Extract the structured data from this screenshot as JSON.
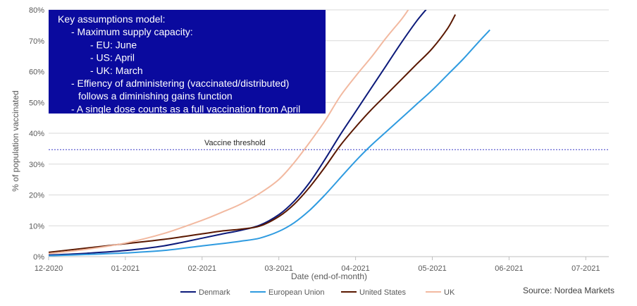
{
  "chart_data": {
    "type": "line",
    "xlabel": "Date (end-of-month)",
    "ylabel": "% of population vaccinated",
    "x_ticks": [
      "12-2020",
      "01-2021",
      "02-2021",
      "03-2021",
      "04-2021",
      "05-2021",
      "06-2021",
      "07-2021"
    ],
    "y_ticks": [
      "0%",
      "10%",
      "20%",
      "30%",
      "40%",
      "50%",
      "60%",
      "70%",
      "80%"
    ],
    "ylim": [
      0,
      80
    ],
    "xlim": [
      0,
      7.3
    ],
    "grid": "horizontal",
    "legend": "bottom",
    "threshold": {
      "label": "Vaccine threshold",
      "value": 34.7,
      "color": "#3a3ac8"
    },
    "source": "Source: Nordea Markets",
    "assumptions_box": {
      "color": "#0a0a9e",
      "lines": [
        "Key assumptions model:",
        "- Maximum supply capacity:",
        "- EU: June",
        "- US: April",
        "- UK: March",
        "- Effiency of administering (vaccinated/distributed)",
        "follows a diminishing gains function",
        "- A single dose counts as a full vaccination from April"
      ]
    },
    "series": [
      {
        "name": "Denmark",
        "color": "#0c1a7a",
        "x": [
          0,
          0.5,
          1,
          1.5,
          2,
          2.25,
          2.5,
          2.75,
          3,
          3.2,
          3.4,
          3.6,
          3.8,
          4.0,
          4.2,
          4.4,
          4.6,
          4.8,
          4.95
        ],
        "y": [
          0.5,
          1.1,
          2.0,
          3.5,
          6.0,
          7.3,
          8.5,
          10.2,
          13.6,
          18.0,
          24.0,
          31.5,
          39.5,
          47.0,
          54.5,
          62.0,
          69.5,
          76.5,
          81.0
        ]
      },
      {
        "name": "European Union",
        "color": "#2f9be0",
        "x": [
          0,
          0.5,
          1,
          1.5,
          2,
          2.25,
          2.5,
          2.75,
          3,
          3.2,
          3.4,
          3.6,
          3.8,
          4.0,
          4.2,
          4.4,
          4.6,
          4.8,
          5.0,
          5.2,
          5.4,
          5.6,
          5.75
        ],
        "y": [
          0.3,
          0.7,
          1.2,
          2.0,
          3.5,
          4.2,
          5.0,
          6.0,
          8.2,
          11.0,
          15.0,
          20.0,
          25.5,
          31.0,
          36.0,
          40.5,
          45.0,
          49.5,
          54.0,
          59.0,
          64.0,
          69.5,
          73.5
        ]
      },
      {
        "name": "United States",
        "color": "#5a1800",
        "x": [
          0,
          0.5,
          1,
          1.5,
          2,
          2.25,
          2.5,
          2.75,
          3,
          3.2,
          3.4,
          3.6,
          3.8,
          4.0,
          4.2,
          4.4,
          4.6,
          4.8,
          5.0,
          5.2,
          5.3
        ],
        "y": [
          1.4,
          2.8,
          4.2,
          5.6,
          7.4,
          8.3,
          8.9,
          9.9,
          13.0,
          17.0,
          22.5,
          29.0,
          36.0,
          42.0,
          47.5,
          52.5,
          57.5,
          62.5,
          67.5,
          74.0,
          78.5
        ]
      },
      {
        "name": "UK",
        "color": "#f2b9a0",
        "x": [
          0,
          0.5,
          1,
          1.5,
          2,
          2.25,
          2.5,
          2.75,
          3,
          3.2,
          3.4,
          3.6,
          3.8,
          4.0,
          4.2,
          4.4,
          4.6,
          4.7
        ],
        "y": [
          1.0,
          2.4,
          4.4,
          7.5,
          11.8,
          14.3,
          17.0,
          20.5,
          25.0,
          30.5,
          37.0,
          44.0,
          52.0,
          58.5,
          64.5,
          71.0,
          77.0,
          80.5
        ]
      }
    ]
  }
}
